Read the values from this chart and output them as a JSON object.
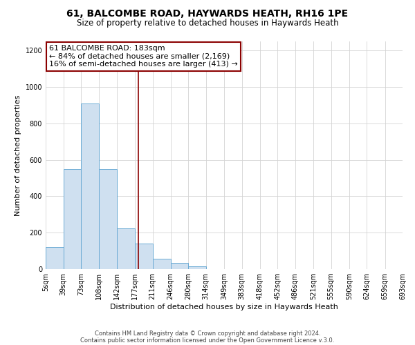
{
  "title": "61, BALCOMBE ROAD, HAYWARDS HEATH, RH16 1PE",
  "subtitle": "Size of property relative to detached houses in Haywards Heath",
  "xlabel": "Distribution of detached houses by size in Haywards Heath",
  "ylabel": "Number of detached properties",
  "footer_line1": "Contains HM Land Registry data © Crown copyright and database right 2024.",
  "footer_line2": "Contains public sector information licensed under the Open Government Licence v.3.0.",
  "annotation_title": "61 BALCOMBE ROAD: 183sqm",
  "annotation_line1": "← 84% of detached houses are smaller (2,169)",
  "annotation_line2": "16% of semi-detached houses are larger (413) →",
  "bin_edges": [
    5,
    39,
    73,
    108,
    142,
    177,
    211,
    246,
    280,
    314,
    349,
    383,
    418,
    452,
    486,
    521,
    555,
    590,
    624,
    659,
    693
  ],
  "bin_counts": [
    120,
    550,
    910,
    550,
    225,
    140,
    55,
    35,
    15,
    0,
    0,
    0,
    0,
    0,
    0,
    0,
    0,
    0,
    0,
    0
  ],
  "property_size": 183,
  "bar_color": "#cfe0f0",
  "bar_edge_color": "#6aaad4",
  "vline_color": "#8b0000",
  "annotation_box_color": "#8b0000",
  "grid_color": "#d3d3d3",
  "background_color": "#ffffff",
  "ylim": [
    0,
    1250
  ],
  "yticks": [
    0,
    200,
    400,
    600,
    800,
    1000,
    1200
  ],
  "title_fontsize": 10,
  "subtitle_fontsize": 8.5,
  "axis_label_fontsize": 8,
  "tick_fontsize": 7,
  "footer_fontsize": 6,
  "annotation_fontsize": 8
}
